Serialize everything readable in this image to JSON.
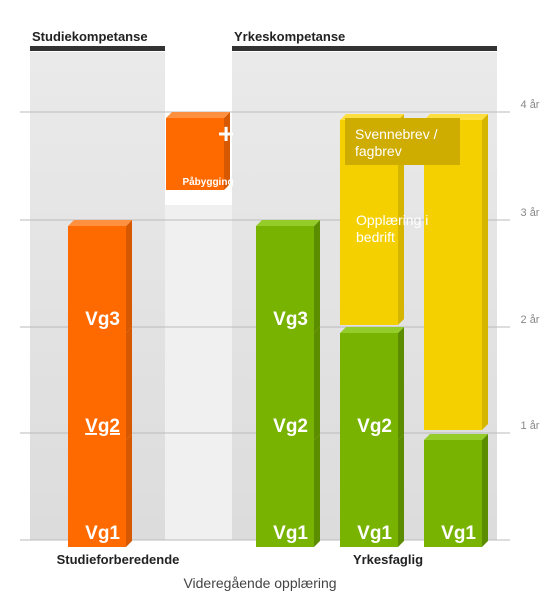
{
  "headers": [
    "Studiekompetanse",
    "Yrkeskompetanse"
  ],
  "axis_labels": [
    "4 år",
    "3 år",
    "2 år",
    "1 år"
  ],
  "studieforberedende": {
    "label": "Studieforberedende",
    "blocks": [
      "Vg1",
      "Vg2",
      "Vg3"
    ]
  },
  "pabygging": {
    "symbol": "+",
    "label": "Påbygging"
  },
  "yrkesfaglig": {
    "label": "Yrkesfaglig",
    "paths": [
      [
        "Vg1",
        "Vg2",
        "Vg3"
      ],
      [
        "Vg1",
        "Vg2"
      ],
      [
        "Vg1"
      ]
    ]
  },
  "training": [
    "Svennebrev / fagbrev",
    "Opplæring i bedrift"
  ],
  "footer": "Videregående opplæring"
}
